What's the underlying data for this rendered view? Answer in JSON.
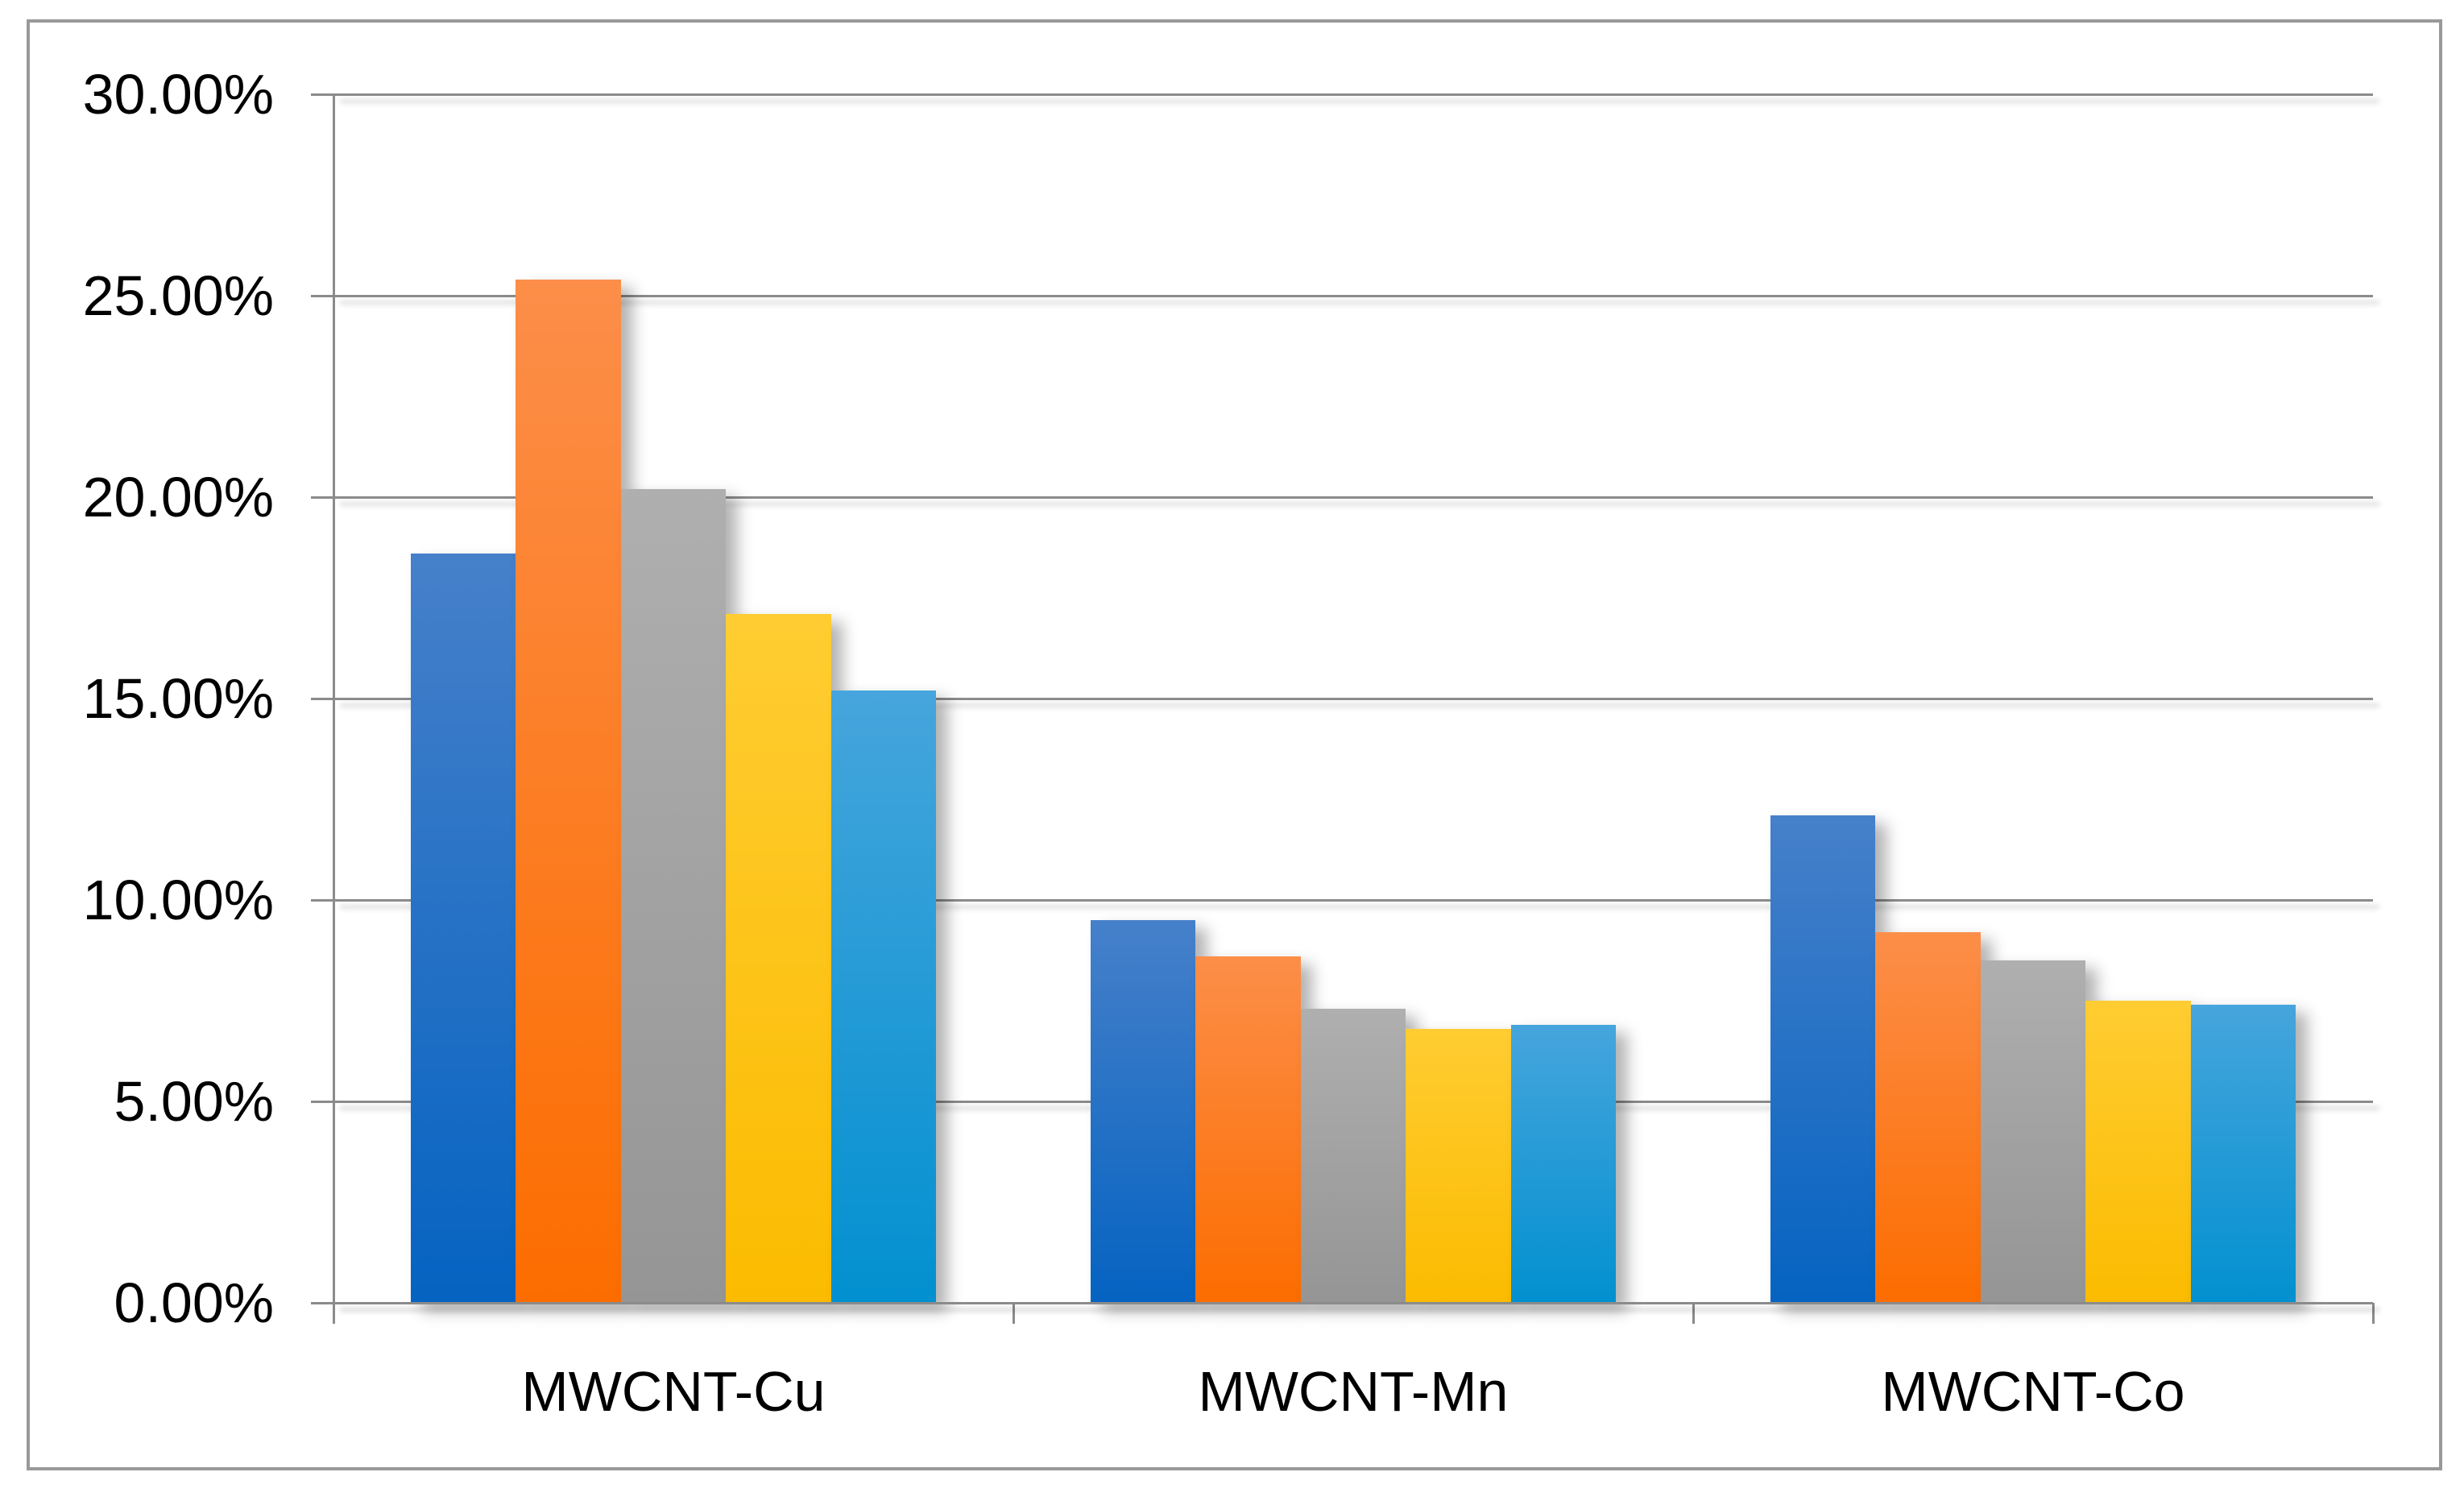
{
  "chart_data": {
    "type": "bar",
    "title": "",
    "xlabel": "",
    "ylabel": "",
    "categories": [
      "MWCNT-Cu",
      "MWCNT-Mn",
      "MWCNT-Co"
    ],
    "series": [
      {
        "name": "blue",
        "color_top": "#4680CA",
        "color_bottom": "#0563C1",
        "values": [
          18.6,
          9.5,
          12.1
        ]
      },
      {
        "name": "orange",
        "color_top": "#FC8E49",
        "color_bottom": "#FC6D00",
        "values": [
          25.4,
          8.6,
          9.2
        ]
      },
      {
        "name": "gray",
        "color_top": "#AFAFAF",
        "color_bottom": "#959595",
        "values": [
          20.2,
          7.3,
          8.5
        ]
      },
      {
        "name": "yellow",
        "color_top": "#FFCD32",
        "color_bottom": "#FBBB00",
        "values": [
          17.1,
          6.8,
          7.5
        ]
      },
      {
        "name": "light-blue",
        "color_top": "#46A5DC",
        "color_bottom": "#0290D0",
        "values": [
          15.2,
          6.9,
          7.4
        ]
      }
    ],
    "y_axis": {
      "tick_labels": [
        "30.00%",
        "25.00%",
        "20.00%",
        "15.00%",
        "10.00%",
        "5.00%",
        "0.00%"
      ],
      "ylim": [
        0,
        30
      ],
      "step": 5,
      "unit": "%"
    },
    "grid": true,
    "legend": "none"
  },
  "colors": {
    "background": "#FFFFFF",
    "border": "#999999",
    "axis": "#8B8B8B",
    "gridline": "#8B8B8B",
    "text": "#000000"
  }
}
